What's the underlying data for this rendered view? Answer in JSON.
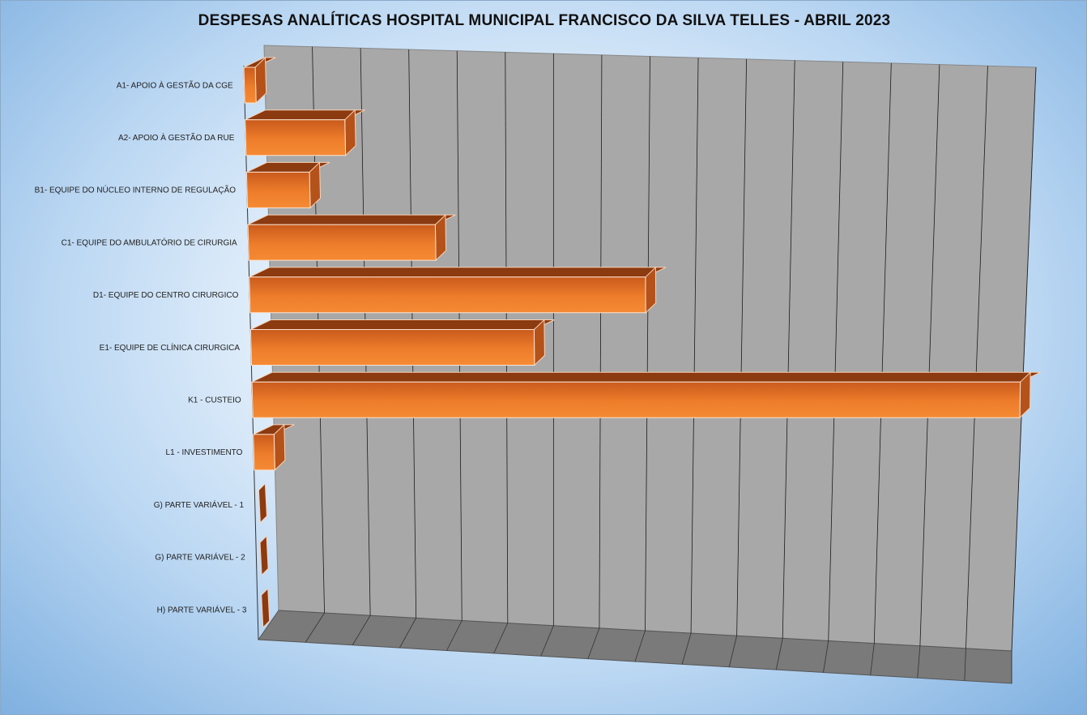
{
  "chart_data": {
    "type": "bar",
    "orientation": "horizontal",
    "title": "DESPESAS ANALÍTICAS HOSPITAL MUNICIPAL FRANCISCO DA SILVA TELLES - ABRIL 2023",
    "categories": [
      "A1- APOIO À GESTÃO DA CGE",
      "A2- APOIO À GESTÃO DA RUE",
      "B1- EQUIPE DO NÚCLEO INTERNO DE REGULAÇÃO",
      "C1- EQUIPE DO AMBULATÓRIO DE CIRURGIA",
      "D1- EQUIPE DO CENTRO CIRURGICO",
      "E1- EQUIPE DE CLÍNICA CIRURGICA",
      "K1 - CUSTEIO",
      "L1 - INVESTIMENTO",
      "G) PARTE VARIÁVEL - 1",
      "G) PARTE VARIÁVEL - 2",
      "H) PARTE VARIÁVEL - 3"
    ],
    "values": [
      1.3,
      12.8,
      8.1,
      24.2,
      51.3,
      36.8,
      100,
      2.7,
      0,
      0,
      0
    ],
    "xlim": [
      0,
      100
    ],
    "grid": true,
    "legend": "none",
    "style": "3d",
    "colors": {
      "bar_front": "#ee7d2b",
      "bar_top": "#8c3a10",
      "bar_side": "#b4521a",
      "wall": "#a8a8a8",
      "floor": "#7a7a7a",
      "gridline": "#1a1a1a"
    }
  }
}
